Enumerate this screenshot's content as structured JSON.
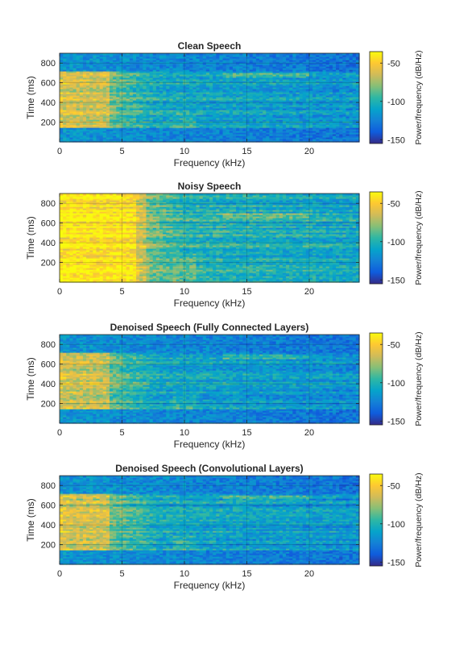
{
  "figure": {
    "colormap": "parula",
    "colors": {
      "axis": "#262626",
      "colormap_stops": [
        "#352a87",
        "#0f5cdd",
        "#1481d6",
        "#06a4ca",
        "#2eb7a4",
        "#87bf77",
        "#d1bb59",
        "#fec832",
        "#f9fb0e"
      ]
    }
  },
  "chart_data": [
    {
      "type": "heatmap",
      "title": "Clean Speech",
      "xlabel": "Frequency (kHz)",
      "ylabel": "Time (ms)",
      "xlim": [
        0,
        24
      ],
      "ylim": [
        0,
        900
      ],
      "xticks": [
        0,
        5,
        10,
        15,
        20
      ],
      "yticks": [
        200,
        400,
        600,
        800
      ],
      "grid": true,
      "colorbar": {
        "label": "Power/frequency (dB/Hz)",
        "ticks": [
          -50,
          -100,
          -150
        ],
        "range": [
          -155,
          -35
        ]
      },
      "speech_segments_ms": [
        [
          150,
          720
        ]
      ],
      "energy_band_khz": [
        0.5,
        4
      ]
    },
    {
      "type": "heatmap",
      "title": "Noisy Speech",
      "xlabel": "Frequency (kHz)",
      "ylabel": "Time (ms)",
      "xlim": [
        0,
        24
      ],
      "ylim": [
        0,
        900
      ],
      "xticks": [
        0,
        5,
        10,
        15,
        20
      ],
      "yticks": [
        200,
        400,
        600,
        800
      ],
      "grid": true,
      "colorbar": {
        "label": "Power/frequency (dB/Hz)",
        "ticks": [
          -50,
          -100,
          -150
        ],
        "range": [
          -155,
          -35
        ]
      },
      "speech_segments_ms": [
        [
          0,
          900
        ]
      ],
      "energy_band_khz": [
        0,
        6
      ]
    },
    {
      "type": "heatmap",
      "title": "Denoised Speech (Fully Connected Layers)",
      "xlabel": "Frequency (kHz)",
      "ylabel": "Time (ms)",
      "xlim": [
        0,
        24
      ],
      "ylim": [
        0,
        900
      ],
      "xticks": [
        0,
        5,
        10,
        15,
        20
      ],
      "yticks": [
        200,
        400,
        600,
        800
      ],
      "grid": true,
      "colorbar": {
        "label": "Power/frequency (dB/Hz)",
        "ticks": [
          -50,
          -100,
          -150
        ],
        "range": [
          -155,
          -35
        ]
      },
      "speech_segments_ms": [
        [
          150,
          720
        ]
      ],
      "energy_band_khz": [
        0.5,
        4
      ]
    },
    {
      "type": "heatmap",
      "title": "Denoised Speech (Convolutional Layers)",
      "xlabel": "Frequency (kHz)",
      "ylabel": "Time (ms)",
      "xlim": [
        0,
        24
      ],
      "ylim": [
        0,
        900
      ],
      "xticks": [
        0,
        5,
        10,
        15,
        20
      ],
      "yticks": [
        200,
        400,
        600,
        800
      ],
      "grid": true,
      "colorbar": {
        "label": "Power/frequency (dB/Hz)",
        "ticks": [
          -50,
          -100,
          -150
        ],
        "range": [
          -155,
          -35
        ]
      },
      "speech_segments_ms": [
        [
          150,
          720
        ]
      ],
      "energy_band_khz": [
        0.5,
        4
      ]
    }
  ]
}
